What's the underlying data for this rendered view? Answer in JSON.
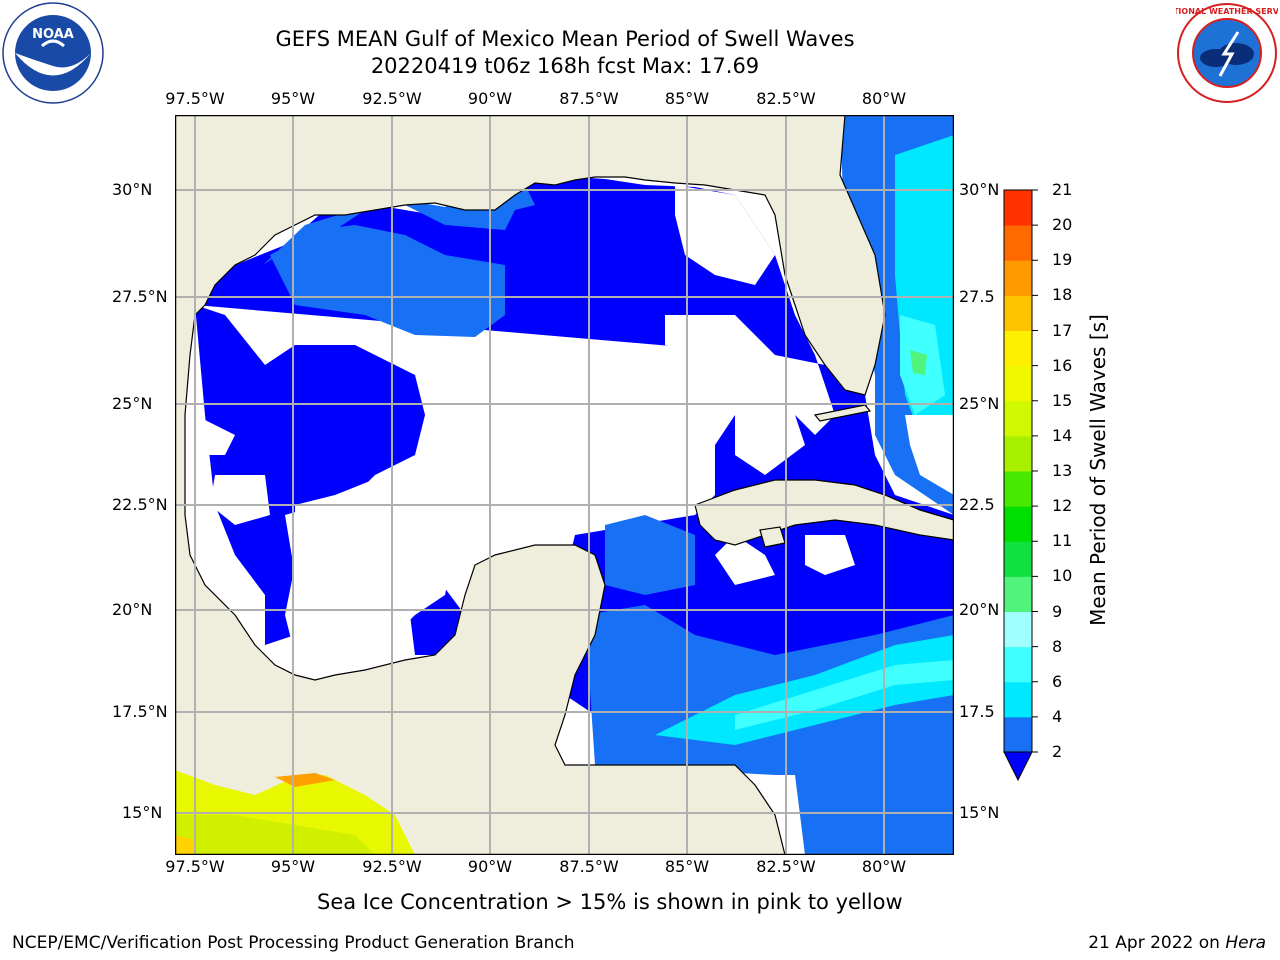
{
  "title": {
    "line1": "GEFS MEAN Gulf of Mexico Mean Period of Swell Waves",
    "line2": "20220419 t06z 168h fcst   Max: 17.69"
  },
  "logos": {
    "left": {
      "name": "noaa-logo",
      "text": "NOAA"
    },
    "right": {
      "name": "nws-logo",
      "text": "NATIONAL WEATHER SERVICE"
    }
  },
  "map": {
    "lon_range": [
      -98.0,
      -78.25
    ],
    "lat_range": [
      14.0,
      31.75
    ],
    "lon_ticks": [
      "97.5°W",
      "95°W",
      "92.5°W",
      "90°W",
      "87.5°W",
      "85°W",
      "82.5°W",
      "80°W"
    ],
    "lat_ticks": [
      "30°N",
      "27.5°N",
      "25°N",
      "22.5°N",
      "20°N",
      "17.5°N",
      "15°N"
    ],
    "right_lat_ticks": [
      "30°N",
      "27.5",
      "25°N",
      "22.5",
      "20°N",
      "17.5",
      "15°N"
    ],
    "land_color": "#efeddc",
    "grid_color": "#b0b0b0"
  },
  "colorbar": {
    "title": "Mean Period of Swell Waves [s]",
    "levels": [
      "2",
      "4",
      "6",
      "8",
      "9",
      "10",
      "11",
      "12",
      "13",
      "14",
      "15",
      "16",
      "17",
      "18",
      "19",
      "20",
      "21"
    ],
    "colors": [
      "#1870f5",
      "#00e8ff",
      "#40ffff",
      "#a0ffff",
      "#50f47c",
      "#10e040",
      "#00e000",
      "#48e800",
      "#a8f000",
      "#d0f800",
      "#f0f800",
      "#ffef00",
      "#ffc400",
      "#ff9900",
      "#ff6a00",
      "#ff3300",
      "#ff0000"
    ],
    "under_color": "#0000ff"
  },
  "note": "Sea Ice Concentration > 15% is shown in pink to yellow",
  "footer": {
    "left": "NCEP/EMC/Verification Post Processing Product Generation Branch",
    "right_prefix": "21 Apr 2022 on ",
    "right_host": "Hera"
  }
}
